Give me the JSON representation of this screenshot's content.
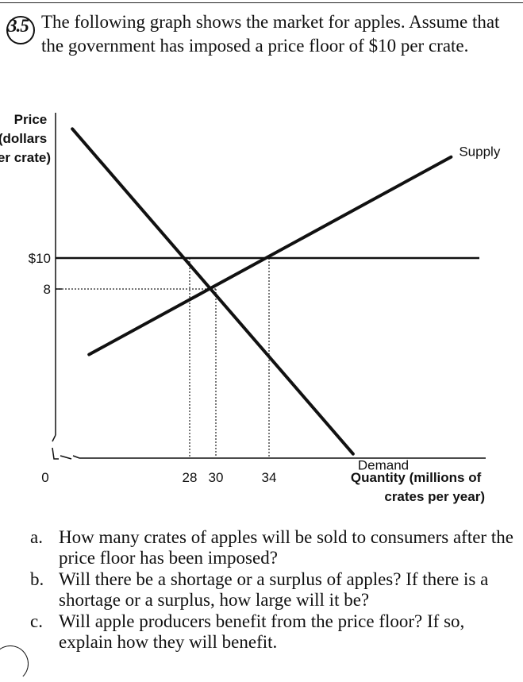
{
  "problem": {
    "number": "3.5",
    "text": "The following graph shows the market for apples. Assume that the government has imposed a price floor of $10 per crate."
  },
  "chart_data": {
    "type": "line",
    "ylabel": "Price (dollars per crate)",
    "ylabel_lines": [
      "Price",
      "(dollars",
      "per crate)"
    ],
    "xlabel": "Quantity (millions of crates per year)",
    "xlabel_lines": [
      "Quantity (millions of",
      "crates per year)"
    ],
    "x_ticks": [
      {
        "value": 28,
        "label": "28"
      },
      {
        "value": 30,
        "label": "30"
      },
      {
        "value": 34,
        "label": "34"
      }
    ],
    "y_ticks": [
      {
        "value": 10,
        "label": "$10"
      },
      {
        "value": 8,
        "label": "8"
      }
    ],
    "origin_label": "0",
    "axis_break": true,
    "series": [
      {
        "name": "Supply",
        "points": [
          [
            22,
            4.9
          ],
          [
            30,
            8
          ],
          [
            34,
            10
          ],
          [
            47,
            15.4
          ]
        ]
      },
      {
        "name": "Demand",
        "points": [
          [
            21,
            16.9
          ],
          [
            28,
            10
          ],
          [
            30,
            8
          ],
          [
            40,
            0.2
          ]
        ]
      }
    ],
    "price_floor": {
      "value": 10,
      "label": "$10"
    },
    "equilibrium": {
      "price": 8,
      "quantity": 30
    },
    "guide_lines": [
      {
        "from": [
          28,
          10
        ],
        "to": [
          28,
          0
        ]
      },
      {
        "from": [
          30,
          8
        ],
        "to": [
          30,
          0
        ]
      },
      {
        "from": [
          34,
          10
        ],
        "to": [
          34,
          0
        ]
      }
    ]
  },
  "parts": [
    {
      "letter": "a.",
      "text": "How many crates of apples will be sold to consumers after the price floor has been imposed?"
    },
    {
      "letter": "b.",
      "text": "Will there be a shortage or a surplus of apples? If there is a shortage or a surplus, how large will it be?"
    },
    {
      "letter": "c.",
      "text": "Will apple producers benefit from the price floor? If so, explain how they will benefit."
    }
  ]
}
